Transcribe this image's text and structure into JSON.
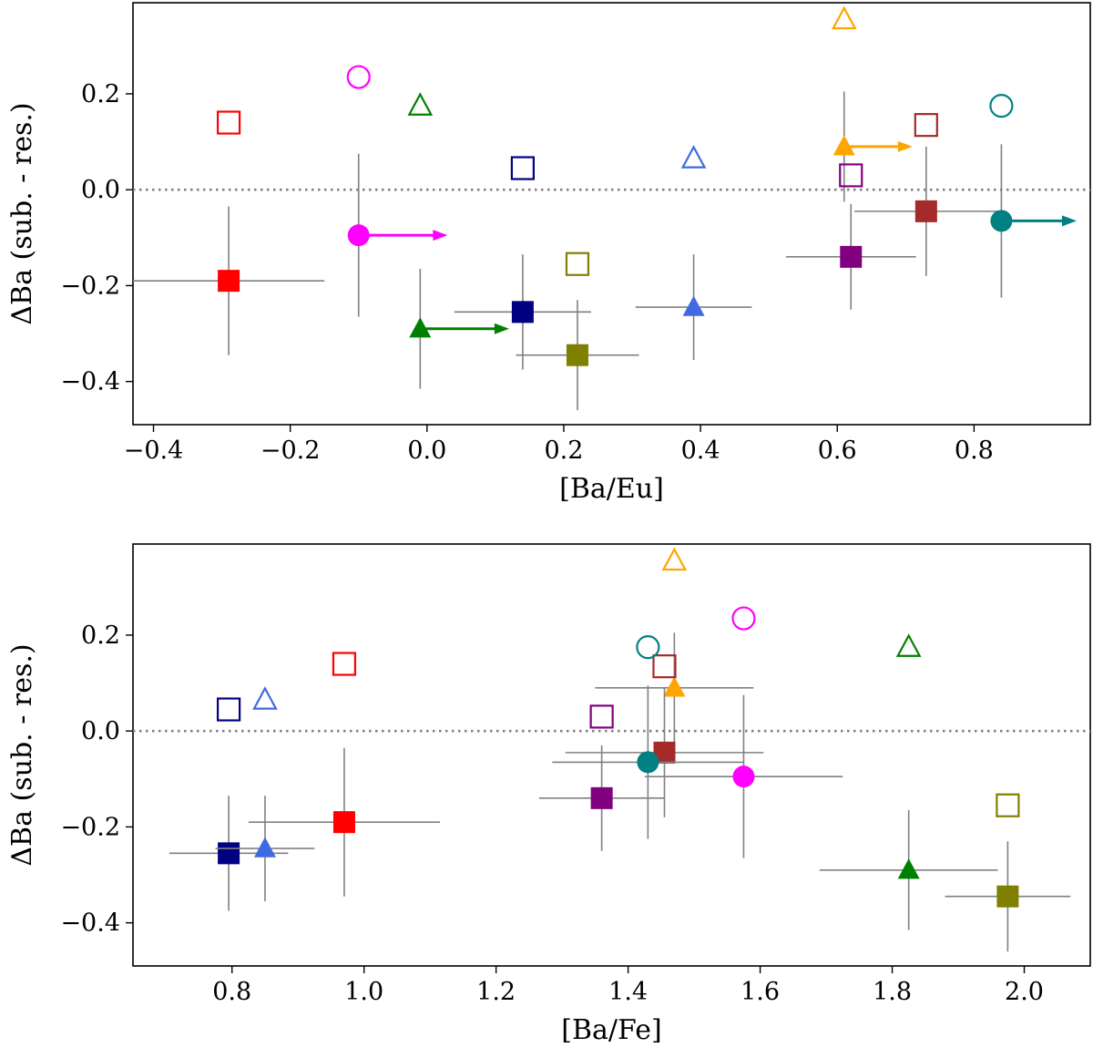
{
  "chart_data": [
    {
      "type": "scatter",
      "xlabel": "[Ba/Eu]",
      "ylabel": "ΔBa (sub. - res.)",
      "xlim": [
        -0.43,
        0.97
      ],
      "ylim": [
        -0.49,
        0.39
      ],
      "xticks": [
        -0.4,
        -0.2,
        0.0,
        0.2,
        0.4,
        0.6,
        0.8
      ],
      "xtick_labels": [
        "−0.4",
        "−0.2",
        "0.0",
        "0.2",
        "0.4",
        "0.6",
        "0.8"
      ],
      "yticks": [
        -0.4,
        -0.2,
        0.0,
        0.2
      ],
      "ytick_labels": [
        "−0.4",
        "−0.2",
        "0.0",
        "0.2"
      ],
      "reference_line": {
        "y": 0.0,
        "style": "dotted"
      },
      "grid": false,
      "filled_points": [
        {
          "x": -0.29,
          "y": -0.19,
          "xerr": 0.14,
          "yerr": 0.155,
          "marker": "square",
          "color": "#ff0000"
        },
        {
          "x": -0.1,
          "y": -0.095,
          "yerr": 0.17,
          "marker": "circle",
          "color": "#ff00ff",
          "arrow_to": 0.03
        },
        {
          "x": -0.01,
          "y": -0.29,
          "yerr": 0.125,
          "marker": "triangle",
          "color": "#008000",
          "arrow_to": 0.12
        },
        {
          "x": 0.14,
          "y": -0.255,
          "xerr": 0.1,
          "yerr": 0.12,
          "marker": "square",
          "color": "#000080"
        },
        {
          "x": 0.22,
          "y": -0.345,
          "xerr": 0.09,
          "yerr": 0.115,
          "marker": "square",
          "color": "#808000"
        },
        {
          "x": 0.39,
          "y": -0.245,
          "xerr": 0.085,
          "yerr": 0.11,
          "marker": "triangle",
          "color": "#4169e1"
        },
        {
          "x": 0.61,
          "y": 0.09,
          "yerr": 0.115,
          "marker": "triangle",
          "color": "#ffa500",
          "arrow_to": 0.71
        },
        {
          "x": 0.62,
          "y": -0.14,
          "xerr": 0.095,
          "yerr": 0.11,
          "marker": "square",
          "color": "#800080"
        },
        {
          "x": 0.73,
          "y": -0.045,
          "xerr": 0.105,
          "yerr": 0.135,
          "marker": "square",
          "color": "#a52a2a"
        },
        {
          "x": 0.84,
          "y": -0.065,
          "yerr": 0.16,
          "marker": "circle",
          "color": "#008080",
          "arrow_to": 0.95
        }
      ],
      "open_points": [
        {
          "x": -0.29,
          "y": 0.14,
          "marker": "square",
          "color": "#ff0000"
        },
        {
          "x": -0.1,
          "y": 0.235,
          "marker": "circle",
          "color": "#ff00ff"
        },
        {
          "x": -0.01,
          "y": 0.175,
          "marker": "triangle",
          "color": "#008000"
        },
        {
          "x": 0.14,
          "y": 0.045,
          "marker": "square",
          "color": "#000080"
        },
        {
          "x": 0.22,
          "y": -0.155,
          "marker": "square",
          "color": "#808000"
        },
        {
          "x": 0.39,
          "y": 0.065,
          "marker": "triangle",
          "color": "#4169e1"
        },
        {
          "x": 0.61,
          "y": 0.355,
          "marker": "triangle",
          "color": "#ffa500"
        },
        {
          "x": 0.62,
          "y": 0.03,
          "marker": "square",
          "color": "#800080"
        },
        {
          "x": 0.73,
          "y": 0.135,
          "marker": "square",
          "color": "#a52a2a"
        },
        {
          "x": 0.84,
          "y": 0.175,
          "marker": "circle",
          "color": "#008080"
        }
      ]
    },
    {
      "type": "scatter",
      "xlabel": "[Ba/Fe]",
      "ylabel": "ΔBa (sub. - res.)",
      "xlim": [
        0.65,
        2.1
      ],
      "ylim": [
        -0.49,
        0.39
      ],
      "xticks": [
        0.8,
        1.0,
        1.2,
        1.4,
        1.6,
        1.8,
        2.0
      ],
      "xtick_labels": [
        "0.8",
        "1.0",
        "1.2",
        "1.4",
        "1.6",
        "1.8",
        "2.0"
      ],
      "yticks": [
        -0.4,
        -0.2,
        0.0,
        0.2
      ],
      "ytick_labels": [
        "−0.4",
        "−0.2",
        "0.0",
        "0.2"
      ],
      "reference_line": {
        "y": 0.0,
        "style": "dotted"
      },
      "grid": false,
      "filled_points": [
        {
          "x": 0.97,
          "y": -0.19,
          "xerr": 0.145,
          "yerr": 0.155,
          "marker": "square",
          "color": "#ff0000"
        },
        {
          "x": 1.575,
          "y": -0.095,
          "xerr": 0.15,
          "yerr": 0.17,
          "marker": "circle",
          "color": "#ff00ff"
        },
        {
          "x": 1.825,
          "y": -0.29,
          "xerr": 0.135,
          "yerr": 0.125,
          "marker": "triangle",
          "color": "#008000"
        },
        {
          "x": 0.795,
          "y": -0.255,
          "xerr": 0.09,
          "yerr": 0.12,
          "marker": "square",
          "color": "#000080"
        },
        {
          "x": 1.975,
          "y": -0.345,
          "xerr": 0.095,
          "yerr": 0.115,
          "marker": "square",
          "color": "#808000"
        },
        {
          "x": 0.85,
          "y": -0.245,
          "xerr": 0.075,
          "yerr": 0.11,
          "marker": "triangle",
          "color": "#4169e1"
        },
        {
          "x": 1.47,
          "y": 0.09,
          "xerr": 0.12,
          "yerr": 0.115,
          "marker": "triangle",
          "color": "#ffa500"
        },
        {
          "x": 1.36,
          "y": -0.14,
          "xerr": 0.095,
          "yerr": 0.11,
          "marker": "square",
          "color": "#800080"
        },
        {
          "x": 1.455,
          "y": -0.045,
          "xerr": 0.15,
          "yerr": 0.135,
          "marker": "square",
          "color": "#a52a2a"
        },
        {
          "x": 1.43,
          "y": -0.065,
          "xerr": 0.145,
          "yerr": 0.16,
          "marker": "circle",
          "color": "#008080"
        }
      ],
      "open_points": [
        {
          "x": 0.97,
          "y": 0.14,
          "marker": "square",
          "color": "#ff0000"
        },
        {
          "x": 1.575,
          "y": 0.235,
          "marker": "circle",
          "color": "#ff00ff"
        },
        {
          "x": 1.825,
          "y": 0.175,
          "marker": "triangle",
          "color": "#008000"
        },
        {
          "x": 0.795,
          "y": 0.045,
          "marker": "square",
          "color": "#000080"
        },
        {
          "x": 1.975,
          "y": -0.155,
          "marker": "square",
          "color": "#808000"
        },
        {
          "x": 0.85,
          "y": 0.065,
          "marker": "triangle",
          "color": "#4169e1"
        },
        {
          "x": 1.47,
          "y": 0.355,
          "marker": "triangle",
          "color": "#ffa500"
        },
        {
          "x": 1.36,
          "y": 0.03,
          "marker": "square",
          "color": "#800080"
        },
        {
          "x": 1.455,
          "y": 0.135,
          "marker": "square",
          "color": "#a52a2a"
        },
        {
          "x": 1.43,
          "y": 0.175,
          "marker": "circle",
          "color": "#008080"
        }
      ]
    }
  ]
}
